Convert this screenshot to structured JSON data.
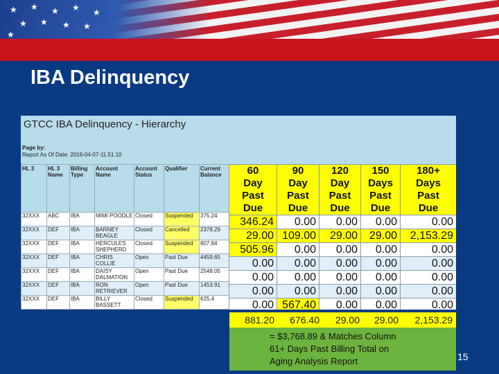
{
  "slide": {
    "title": "IBA Delinquency",
    "page_number": "15"
  },
  "report": {
    "title": "GTCC IBA Delinquency - Hierarchy",
    "page_by": "Page by:",
    "as_of": "Report As Of Date: 2016-04-07-11.51.10",
    "left_headers": [
      "HL 3",
      "HL 3 Name",
      "Billing Type",
      "Account Name",
      "Account Status",
      "Qualifier",
      "Current Balance"
    ],
    "right_headers": [
      "60\nDay\nPast\nDue",
      "90\nDay\nPast\nDue",
      "120\nDay\nPast\nDue",
      "150\nDays\nPast\nDue",
      "180+\nDays\nPast\nDue"
    ],
    "rows": [
      {
        "hl3": "32XXX",
        "name": "ABC",
        "billing": "IBA",
        "account": "MIMI POODLE",
        "status": "Closed",
        "qualifier": "Suspended",
        "balance": "375.24",
        "d60": "346.24",
        "d90": "0.00",
        "d120": "0.00",
        "d150": "0.00",
        "d180": "0.00"
      },
      {
        "hl3": "32XXX",
        "name": "DEF",
        "billing": "IBA",
        "account": "BARNEY BEAGLE",
        "status": "Closed",
        "qualifier": "Cancelled",
        "balance": "2378.29",
        "d60": "29.00",
        "d90": "109.00",
        "d120": "29.00",
        "d150": "29.00",
        "d180": "2,153.29"
      },
      {
        "hl3": "32XXX",
        "name": "DEF",
        "billing": "IBA",
        "account": "HERCULES SHEPHERD",
        "status": "Closed",
        "qualifier": "Suspended",
        "balance": "807.84",
        "d60": "505.96",
        "d90": "0.00",
        "d120": "0.00",
        "d150": "0.00",
        "d180": "0.00"
      },
      {
        "hl3": "32XXX",
        "name": "DEF",
        "billing": "IBA",
        "account": "CHRIS COLLIE",
        "status": "Open",
        "qualifier": "Past Due",
        "balance": "4459.65",
        "d60": "0.00",
        "d90": "0.00",
        "d120": "0.00",
        "d150": "0.00",
        "d180": "0.00"
      },
      {
        "hl3": "32XXX",
        "name": "DEF",
        "billing": "IBA",
        "account": "DAISY DALMATION",
        "status": "Open",
        "qualifier": "Past Due",
        "balance": "2548.05",
        "d60": "0.00",
        "d90": "0.00",
        "d120": "0.00",
        "d150": "0.00",
        "d180": "0.00"
      },
      {
        "hl3": "32XXX",
        "name": "DEF",
        "billing": "IBA",
        "account": "RON RETRIEVER",
        "status": "Open",
        "qualifier": "Past Due",
        "balance": "1453.91",
        "d60": "0.00",
        "d90": "0.00",
        "d120": "0.00",
        "d150": "0.00",
        "d180": "0.00"
      },
      {
        "hl3": "32XXX",
        "name": "DEF",
        "billing": "IBA",
        "account": "BILLY BASSETT",
        "status": "Closed",
        "qualifier": "Suspended",
        "balance": "625.4",
        "d60": "0.00",
        "d90": "567.40",
        "d120": "0.00",
        "d150": "0.00",
        "d180": "0.00"
      }
    ],
    "totals": {
      "d60": "881.20",
      "d90": "676.40",
      "d120": "29.00",
      "d150": "29.00",
      "d180": "2,153.29"
    }
  },
  "note": {
    "line1": "= $3,768.89 & Matches Column",
    "line2": "61+ Days Past Billing Total on",
    "line3": "Aging Analysis Report"
  },
  "colors": {
    "background_blue": "#0a3a82",
    "flag_red": "#c8141e",
    "highlight_yellow": "#ffff00",
    "note_green": "#6db33f",
    "report_header_blue": "#b7dcec"
  }
}
